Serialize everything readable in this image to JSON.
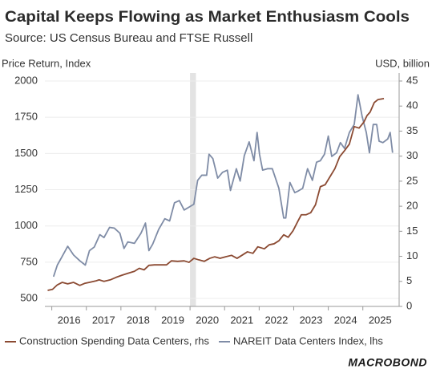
{
  "chart_data": {
    "type": "line",
    "title": "Capital Keeps Flowing as Market Enthusiasm Cools",
    "subtitle": "Source: US Census Bureau and FTSE Russell",
    "ylabel": "Price Return, Index",
    "y2label": "USD, billion",
    "source_logo": "MACROBOND",
    "xlim": [
      2015.8,
      2026.05
    ],
    "xticks": [
      2016,
      2017,
      2018,
      2019,
      2020,
      2021,
      2022,
      2023,
      2024,
      2025
    ],
    "ylim": [
      445,
      2000
    ],
    "yticks": [
      500,
      750,
      1000,
      1250,
      1500,
      1750,
      2000
    ],
    "y2lim": [
      0,
      45
    ],
    "y2ticks": [
      0,
      5,
      10,
      15,
      20,
      25,
      30,
      35,
      40,
      45
    ],
    "grid": true,
    "shade": [
      2020.0,
      2020.17
    ],
    "legend": "bottom",
    "series": [
      {
        "name": "Construction Spending Data Centers, rhs",
        "color": "#8b4a32",
        "axis": "y2",
        "x": [
          2015.88,
          2016.02,
          2016.16,
          2016.3,
          2016.46,
          2016.63,
          2016.81,
          2016.95,
          2017.09,
          2017.28,
          2017.37,
          2017.51,
          2017.69,
          2017.86,
          2018.02,
          2018.2,
          2018.39,
          2018.53,
          2018.67,
          2018.81,
          2018.97,
          2019.13,
          2019.32,
          2019.46,
          2019.64,
          2019.83,
          2019.97,
          2020.11,
          2020.25,
          2020.41,
          2020.57,
          2020.71,
          2020.87,
          2021.03,
          2021.2,
          2021.36,
          2021.5,
          2021.66,
          2021.82,
          2021.96,
          2022.15,
          2022.29,
          2022.43,
          2022.57,
          2022.71,
          2022.84,
          2022.98,
          2023.12,
          2023.22,
          2023.36,
          2023.49,
          2023.63,
          2023.77,
          2023.91,
          2024.05,
          2024.19,
          2024.33,
          2024.47,
          2024.61,
          2024.75,
          2024.89,
          2025.03,
          2025.12,
          2025.21,
          2025.33,
          2025.44,
          2025.61
        ],
        "values": [
          3.2,
          3.4,
          4.3,
          4.8,
          4.5,
          4.8,
          4.2,
          4.6,
          4.8,
          5.1,
          5.3,
          5.0,
          5.3,
          5.8,
          6.2,
          6.6,
          7.0,
          7.6,
          7.3,
          8.2,
          8.3,
          8.3,
          8.3,
          9.1,
          9.0,
          9.1,
          8.8,
          9.6,
          9.3,
          9.0,
          9.6,
          9.9,
          9.6,
          9.9,
          10.2,
          9.6,
          10.2,
          10.9,
          10.6,
          11.9,
          11.5,
          12.3,
          12.5,
          13.1,
          14.3,
          13.8,
          15.1,
          17.0,
          18.3,
          18.3,
          18.7,
          20.3,
          23.9,
          24.3,
          25.9,
          27.5,
          29.9,
          31.1,
          32.4,
          35.9,
          35.6,
          36.8,
          38.1,
          38.8,
          40.7,
          41.3,
          41.5
        ]
      },
      {
        "name": "NAREIT Data Centers Index, lhs",
        "color": "#7f8ca6",
        "axis": "y",
        "x": [
          2016.05,
          2016.16,
          2016.3,
          2016.46,
          2016.63,
          2016.81,
          2016.97,
          2017.09,
          2017.23,
          2017.39,
          2017.51,
          2017.67,
          2017.81,
          2017.97,
          2018.09,
          2018.2,
          2018.39,
          2018.58,
          2018.71,
          2018.81,
          2018.92,
          2019.09,
          2019.27,
          2019.41,
          2019.55,
          2019.69,
          2019.83,
          2019.97,
          2020.11,
          2020.22,
          2020.34,
          2020.48,
          2020.55,
          2020.66,
          2020.8,
          2020.94,
          2021.08,
          2021.17,
          2021.34,
          2021.45,
          2021.57,
          2021.71,
          2021.85,
          2021.94,
          2022.01,
          2022.1,
          2022.24,
          2022.38,
          2022.57,
          2022.71,
          2022.77,
          2022.89,
          2023.03,
          2023.12,
          2023.26,
          2023.4,
          2023.54,
          2023.66,
          2023.77,
          2023.89,
          2024.0,
          2024.1,
          2024.24,
          2024.35,
          2024.47,
          2024.61,
          2024.75,
          2024.86,
          2024.98,
          2025.1,
          2025.19,
          2025.3,
          2025.4,
          2025.47,
          2025.58,
          2025.72,
          2025.79,
          2025.86
        ],
        "values": [
          650,
          730,
          790,
          860,
          800,
          760,
          730,
          830,
          855,
          940,
          920,
          990,
          985,
          950,
          845,
          890,
          880,
          950,
          1020,
          830,
          875,
          975,
          1050,
          1035,
          1160,
          1175,
          1110,
          1130,
          1150,
          1315,
          1350,
          1350,
          1495,
          1465,
          1330,
          1370,
          1385,
          1245,
          1395,
          1310,
          1485,
          1580,
          1450,
          1645,
          1495,
          1385,
          1395,
          1395,
          1260,
          1055,
          1055,
          1300,
          1230,
          1240,
          1260,
          1395,
          1315,
          1440,
          1450,
          1495,
          1620,
          1480,
          1505,
          1575,
          1535,
          1645,
          1700,
          1905,
          1755,
          1645,
          1505,
          1700,
          1700,
          1585,
          1575,
          1600,
          1645,
          1505
        ]
      }
    ]
  }
}
